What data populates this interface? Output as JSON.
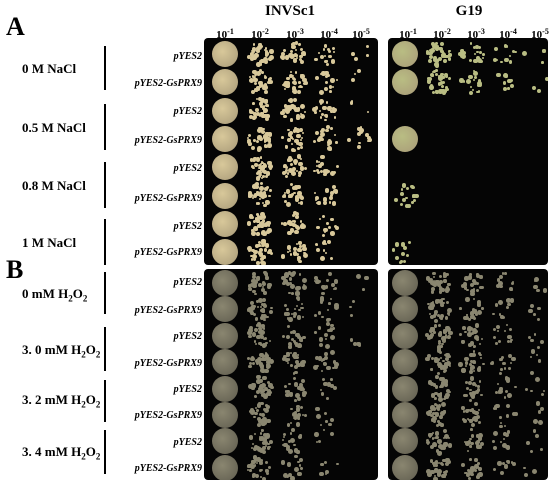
{
  "panels": [
    {
      "letter": "A",
      "conditions": [
        {
          "label": "0 M   NaCl",
          "strains": [
            "pYES2",
            "pYES2-GsPRX9"
          ]
        },
        {
          "label": "0.5 M NaCl",
          "strains": [
            "pYES2",
            "pYES2-GsPRX9"
          ]
        },
        {
          "label": "0.8 M  NaCl",
          "strains": [
            "pYES2",
            "pYES2-GsPRX9"
          ]
        },
        {
          "label": "1 M   NaCl",
          "strains": [
            "pYES2",
            "pYES2-GsPRX9"
          ]
        }
      ]
    },
    {
      "letter": "B",
      "conditions": [
        {
          "label_main": "0 mM H",
          "label_sub": "2",
          "label_end": "O",
          "label_sub2": "2",
          "strains": [
            "pYES2",
            "pYES2-GsPRX9"
          ]
        },
        {
          "label_main": "3. 0 mM H",
          "label_sub": "2",
          "label_end": "O",
          "label_sub2": "2",
          "strains": [
            "pYES2",
            "pYES2-GsPRX9"
          ]
        },
        {
          "label_main": "3. 2 mM H",
          "label_sub": "2",
          "label_end": "O",
          "label_sub2": "2",
          "strains": [
            "pYES2",
            "pYES2-GsPRX9"
          ]
        },
        {
          "label_main": "3. 4 mM H",
          "label_sub": "2",
          "label_end": "O",
          "label_sub2": "2",
          "strains": [
            "pYES2",
            "pYES2-GsPRX9"
          ]
        }
      ]
    }
  ],
  "columns": [
    {
      "title": "INVSc1",
      "dilutions": [
        {
          "base": "10",
          "exp": "-1"
        },
        {
          "base": "10",
          "exp": "-2"
        },
        {
          "base": "10",
          "exp": "-3"
        },
        {
          "base": "10",
          "exp": "-4"
        },
        {
          "base": "10",
          "exp": "-5"
        }
      ]
    },
    {
      "title": "G19",
      "dilutions": [
        {
          "base": "10",
          "exp": "-1"
        },
        {
          "base": "10",
          "exp": "-2"
        },
        {
          "base": "10",
          "exp": "-3"
        },
        {
          "base": "10",
          "exp": "-4"
        },
        {
          "base": "10",
          "exp": "-5"
        }
      ]
    }
  ],
  "colors": {
    "plate_background": "#050505",
    "colony_cream": "#d8c89a",
    "colony_tan": "#a89a78",
    "colony_grey": "#8a8670",
    "colony_green": "#b9bd83"
  },
  "growth_A_INVSc1": [
    [
      1.0,
      0.9,
      0.7,
      0.35,
      0.08
    ],
    [
      1.0,
      0.95,
      0.8,
      0.35,
      0.06
    ],
    [
      1.0,
      0.9,
      0.7,
      0.45,
      0.05
    ],
    [
      1.0,
      0.9,
      0.65,
      0.45,
      0.3
    ],
    [
      1.0,
      0.85,
      0.75,
      0.4,
      0.0
    ],
    [
      1.0,
      0.85,
      0.55,
      0.4,
      0.0
    ],
    [
      1.0,
      0.95,
      0.6,
      0.3,
      0.0
    ],
    [
      1.0,
      0.85,
      0.55,
      0.25,
      0.0
    ]
  ],
  "growth_A_G19": [
    [
      1.0,
      0.9,
      0.5,
      0.25,
      0.05
    ],
    [
      1.0,
      0.85,
      0.45,
      0.2,
      0.05
    ],
    [
      0,
      0,
      0,
      0,
      0
    ],
    [
      0.9,
      0,
      0,
      0,
      0
    ],
    [
      0,
      0,
      0,
      0,
      0
    ],
    [
      0.4,
      0,
      0,
      0,
      0
    ],
    [
      0,
      0,
      0,
      0,
      0
    ],
    [
      0.3,
      0,
      0,
      0,
      0
    ]
  ],
  "growth_B_INVSc1": [
    [
      1.0,
      0.75,
      0.55,
      0.35,
      0.05
    ],
    [
      1.0,
      0.75,
      0.5,
      0.3,
      0.05
    ],
    [
      1.0,
      0.8,
      0.55,
      0.35,
      0.08
    ],
    [
      1.0,
      0.8,
      0.6,
      0.4,
      0.0
    ],
    [
      1.0,
      0.75,
      0.5,
      0.2,
      0.0
    ],
    [
      1.0,
      0.75,
      0.45,
      0.15,
      0.0
    ],
    [
      1.0,
      0.7,
      0.4,
      0.1,
      0.0
    ],
    [
      1.0,
      0.7,
      0.35,
      0.15,
      0.0
    ]
  ],
  "growth_B_G19": [
    [
      1.0,
      0.8,
      0.5,
      0.25,
      0.1
    ],
    [
      1.0,
      0.8,
      0.5,
      0.25,
      0.1
    ],
    [
      1.0,
      0.8,
      0.55,
      0.3,
      0.1
    ],
    [
      1.0,
      0.8,
      0.55,
      0.3,
      0.1
    ],
    [
      1.0,
      0.8,
      0.55,
      0.3,
      0.1
    ],
    [
      1.0,
      0.8,
      0.55,
      0.3,
      0.1
    ],
    [
      1.0,
      0.8,
      0.45,
      0.25,
      0.1
    ],
    [
      1.0,
      0.8,
      0.45,
      0.2,
      0.05
    ]
  ]
}
